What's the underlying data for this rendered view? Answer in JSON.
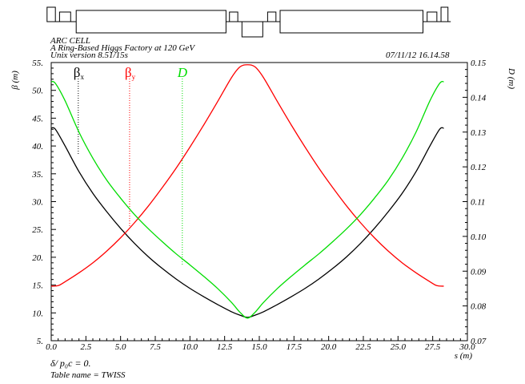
{
  "header": {
    "line1": "ARC CELL",
    "line2": "A Ring-Based Higgs Factory at 120 GeV",
    "line3": "Unix version 8.51/15s",
    "timestamp": "07/11/12  16.14.58"
  },
  "footer": {
    "line1": "δ/ p₀c  =  0.",
    "line2": "Table name = TWISS"
  },
  "chart_data": {
    "type": "line",
    "title": "ARC CELL",
    "subtitle": "A Ring-Based Higgs Factory at 120 GeV",
    "xlabel": "s (m)",
    "ylabel_left": "β (m)",
    "ylabel_right": "D (m)",
    "xlim": [
      0.0,
      30.0
    ],
    "ylim_left": [
      5.0,
      55.0
    ],
    "ylim_right": [
      0.07,
      0.15
    ],
    "x_ticks": [
      "0.0",
      "2.5",
      "5.0",
      "7.5",
      "10.0",
      "12.5",
      "15.0",
      "17.5",
      "20.0",
      "22.5",
      "25.0",
      "27.5",
      "30.0"
    ],
    "y_ticks_left": [
      "5.",
      "10.",
      "15.",
      "20.",
      "25.",
      "30.",
      "35.",
      "40.",
      "45.",
      "50.",
      "55."
    ],
    "y_ticks_right": [
      "0.07",
      "0.08",
      "0.09",
      "0.10",
      "0.11",
      "0.12",
      "0.13",
      "0.14",
      "0.15"
    ],
    "legend": [
      {
        "label": "β",
        "sub": "x",
        "color": "#000000",
        "marker_s": 1.95
      },
      {
        "label": "β",
        "sub": "y",
        "color": "#ff0000",
        "marker_s": 5.65
      },
      {
        "label": "D",
        "sub": "",
        "color": "#00dd00",
        "marker_s": 9.45
      }
    ],
    "series": [
      {
        "name": "βx",
        "axis": "left",
        "color": "#000000",
        "x": [
          0.0,
          0.3,
          1.0,
          2.0,
          3.0,
          4.0,
          5.0,
          6.0,
          7.0,
          8.0,
          9.0,
          10.0,
          11.0,
          12.0,
          13.0,
          13.6,
          14.15,
          14.7,
          15.3,
          16.3,
          17.3,
          18.3,
          19.3,
          20.3,
          21.3,
          22.3,
          23.3,
          24.3,
          25.3,
          26.3,
          27.3,
          28.0,
          28.3
        ],
        "values": [
          43.2,
          43.0,
          40.0,
          35.4,
          31.5,
          28.2,
          25.2,
          22.5,
          20.1,
          18.0,
          16.1,
          14.4,
          12.9,
          11.5,
          10.2,
          9.6,
          9.2,
          9.6,
          10.2,
          11.5,
          12.9,
          14.4,
          16.1,
          18.0,
          20.1,
          22.5,
          25.2,
          28.2,
          31.5,
          35.4,
          40.0,
          43.0,
          43.2
        ]
      },
      {
        "name": "βy",
        "axis": "left",
        "color": "#ff0000",
        "x": [
          0.0,
          0.5,
          1.0,
          2.0,
          3.0,
          4.0,
          5.0,
          6.0,
          7.0,
          8.0,
          9.0,
          10.0,
          11.0,
          12.0,
          13.0,
          13.6,
          14.15,
          14.7,
          15.3,
          16.3,
          17.3,
          18.3,
          19.3,
          20.3,
          21.3,
          22.3,
          23.3,
          24.3,
          25.3,
          26.3,
          27.3,
          27.8,
          28.3
        ],
        "values": [
          14.8,
          14.9,
          15.6,
          17.2,
          19.0,
          21.1,
          23.5,
          26.2,
          29.2,
          32.5,
          36.0,
          39.8,
          43.8,
          48.0,
          52.3,
          54.2,
          54.6,
          54.2,
          52.3,
          48.0,
          43.8,
          39.8,
          36.0,
          32.5,
          29.2,
          26.2,
          23.5,
          21.1,
          19.0,
          17.2,
          15.6,
          14.9,
          14.8
        ]
      },
      {
        "name": "D",
        "axis": "right",
        "color": "#00dd00",
        "x": [
          0.0,
          0.3,
          1.0,
          2.0,
          3.0,
          4.0,
          5.0,
          6.0,
          7.0,
          8.0,
          9.0,
          10.0,
          11.0,
          12.0,
          13.0,
          13.6,
          14.15,
          14.7,
          15.3,
          16.3,
          17.3,
          18.3,
          19.3,
          20.3,
          21.3,
          22.3,
          23.3,
          24.3,
          25.3,
          26.3,
          27.3,
          28.0,
          28.3
        ],
        "values": [
          0.1445,
          0.144,
          0.139,
          0.13,
          0.1225,
          0.1162,
          0.111,
          0.1063,
          0.1022,
          0.0985,
          0.095,
          0.0918,
          0.0885,
          0.085,
          0.081,
          0.0782,
          0.0765,
          0.0782,
          0.081,
          0.085,
          0.0885,
          0.0918,
          0.095,
          0.0985,
          0.1022,
          0.1063,
          0.111,
          0.1162,
          0.1225,
          0.13,
          0.139,
          0.144,
          0.1445
        ]
      }
    ],
    "lattice": {
      "caption": "",
      "elements": [
        {
          "kind": "quad",
          "s0": -0.3,
          "s1": 0.3
        },
        {
          "kind": "sext",
          "s0": 0.6,
          "s1": 1.4
        },
        {
          "kind": "dipole",
          "s0": 1.8,
          "s1": 12.6
        },
        {
          "kind": "sext",
          "s0": 12.85,
          "s1": 13.45
        },
        {
          "kind": "quad_down",
          "s0": 13.75,
          "s1": 15.25
        },
        {
          "kind": "sext",
          "s0": 15.6,
          "s1": 16.2
        },
        {
          "kind": "dipole",
          "s0": 16.5,
          "s1": 26.8
        },
        {
          "kind": "sext",
          "s0": 27.1,
          "s1": 27.8
        },
        {
          "kind": "quad",
          "s0": 28.1,
          "s1": 28.6
        }
      ]
    },
    "grid": false
  }
}
